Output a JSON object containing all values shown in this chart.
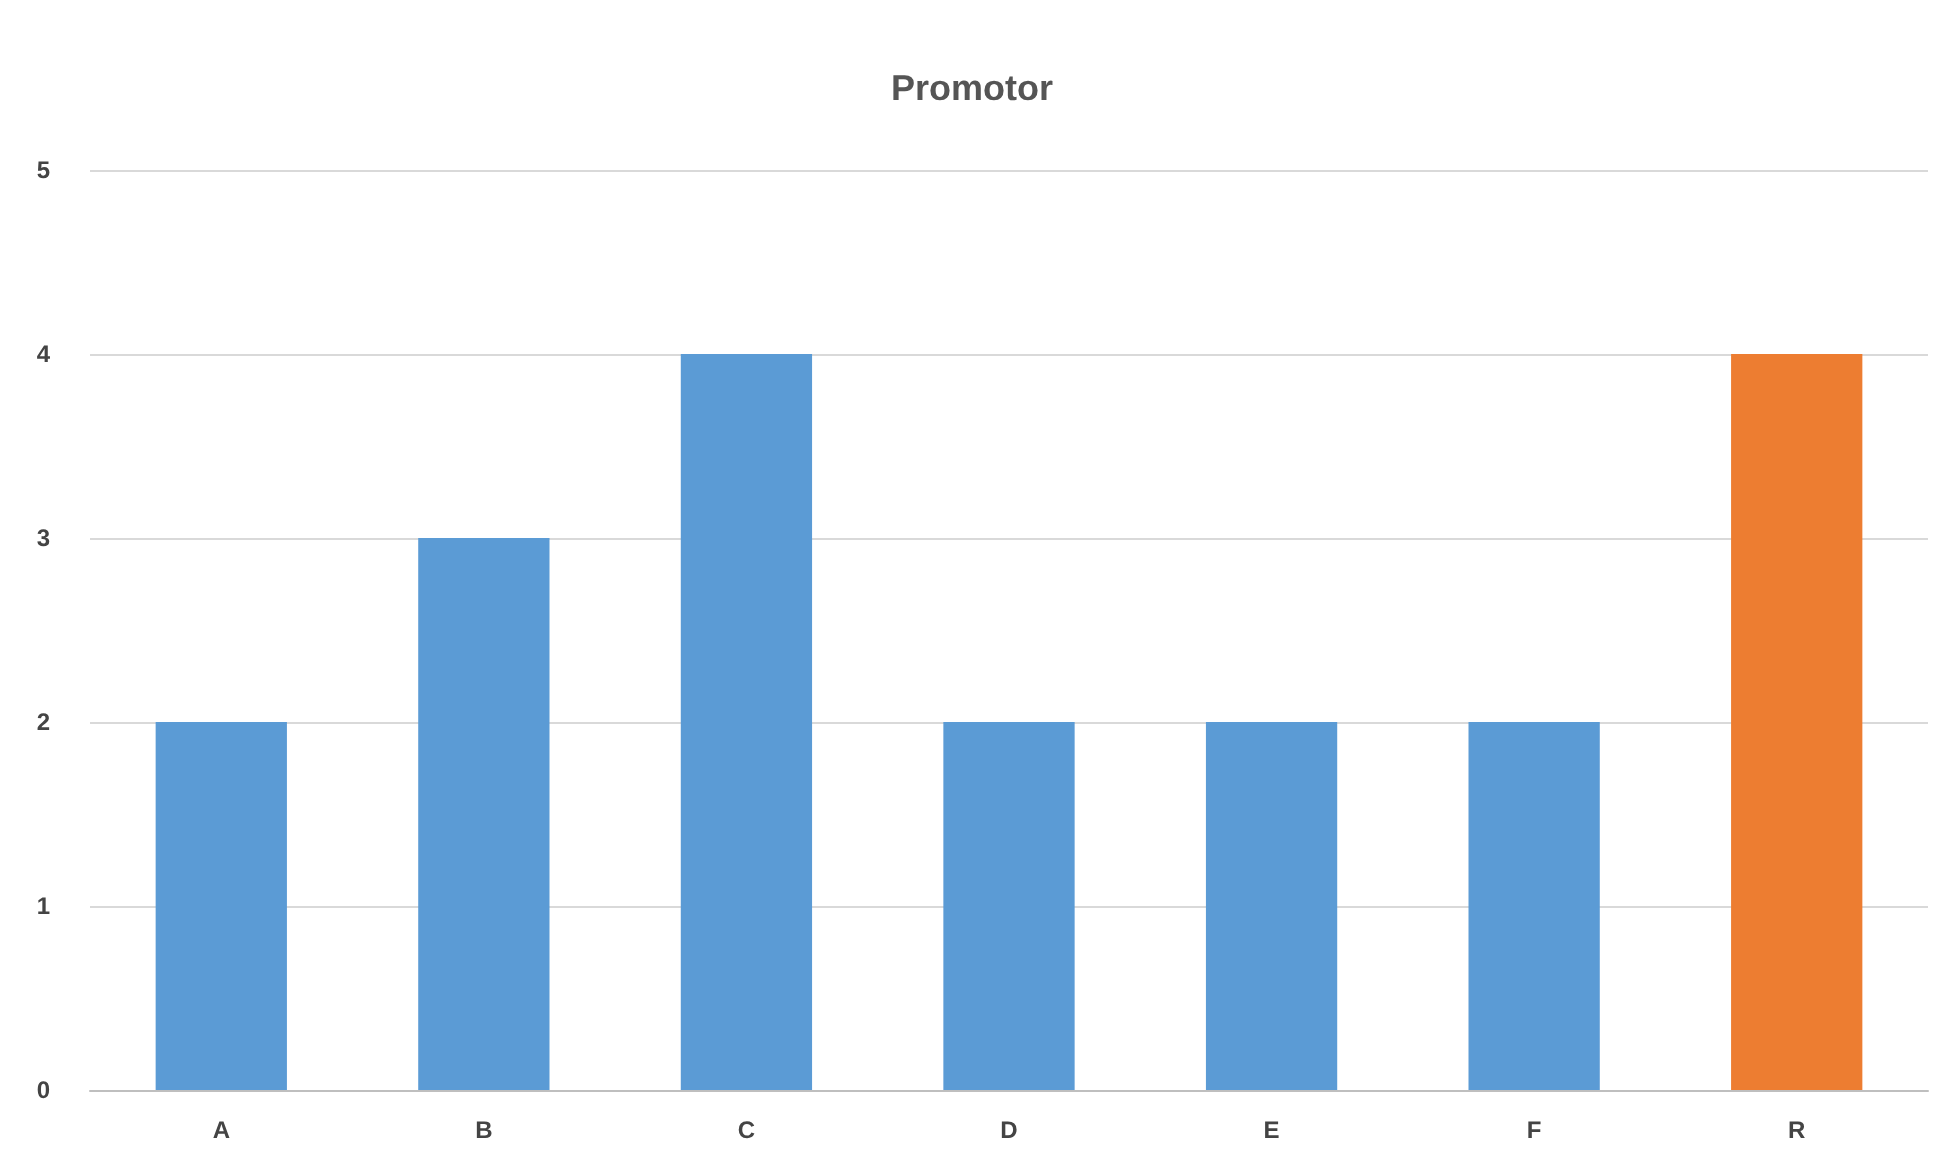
{
  "chart_data": {
    "type": "bar",
    "title": "Promotor",
    "categories": [
      "A",
      "B",
      "C",
      "D",
      "E",
      "F",
      "R"
    ],
    "values": [
      2,
      3,
      4,
      2,
      2,
      2,
      4
    ],
    "colors": [
      "#5b9bd5",
      "#5b9bd5",
      "#5b9bd5",
      "#5b9bd5",
      "#5b9bd5",
      "#5b9bd5",
      "#ed7d31"
    ],
    "ylim": [
      0,
      5
    ],
    "yticks": [
      0,
      1,
      2,
      3,
      4,
      5
    ],
    "grid": "y"
  }
}
